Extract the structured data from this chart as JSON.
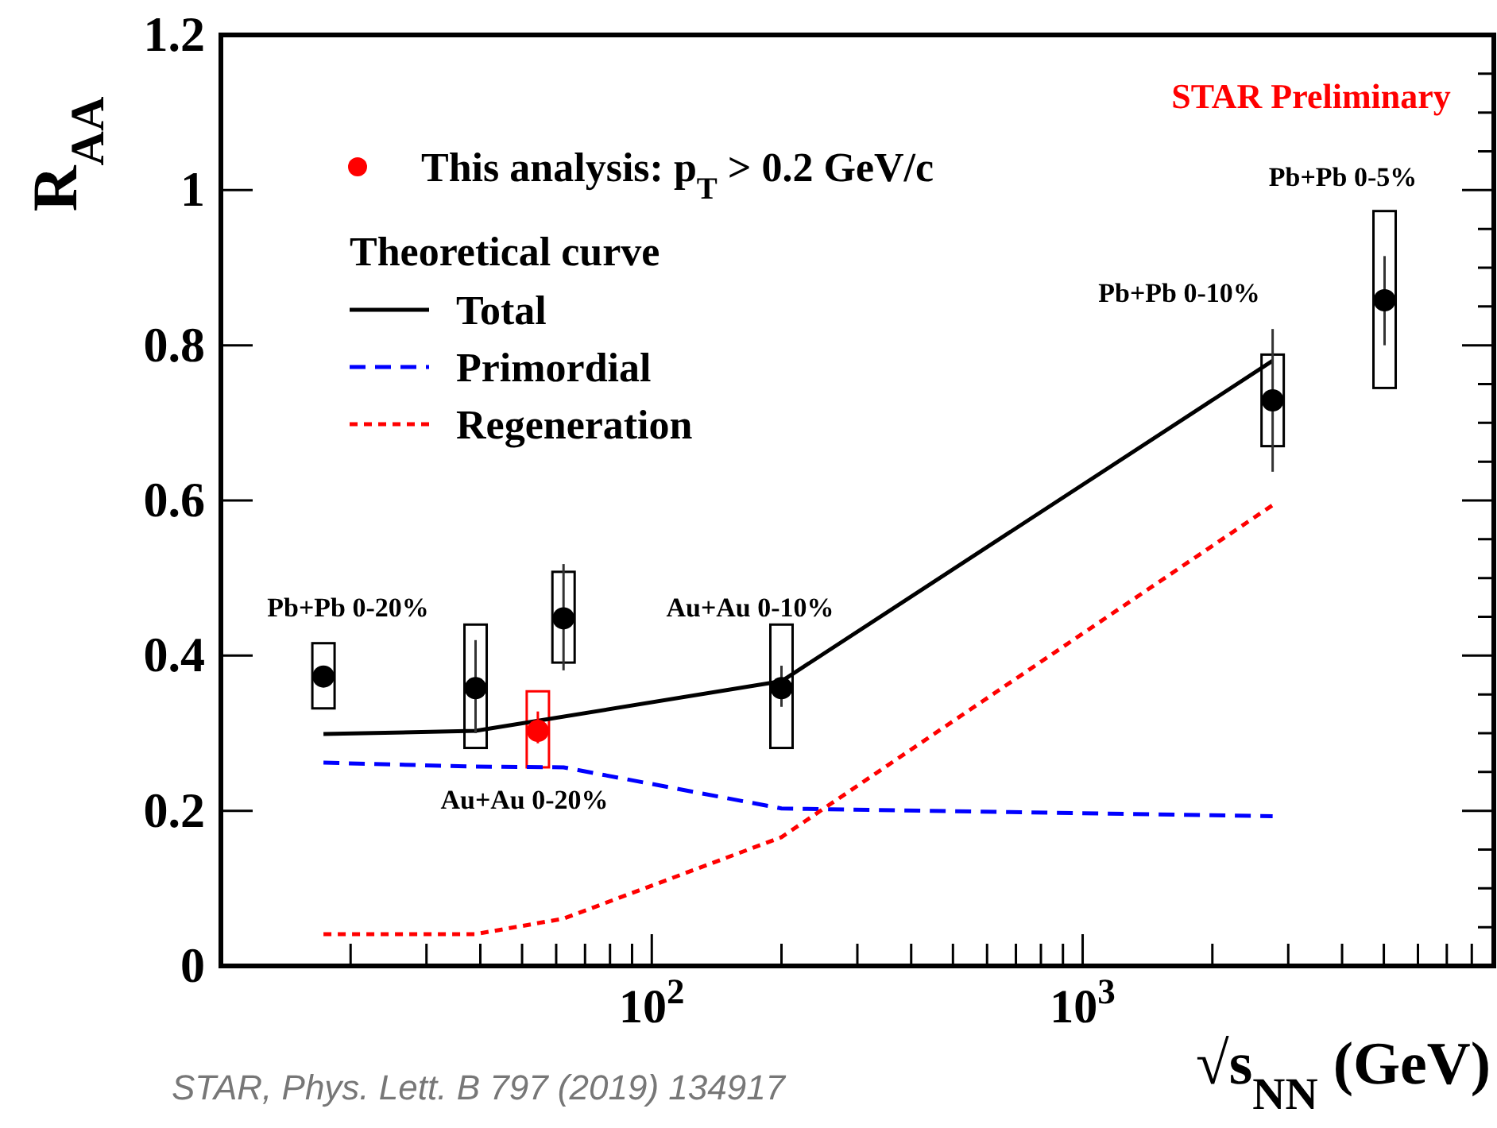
{
  "chart_data": {
    "type": "scatter",
    "xlabel": "√s$_{NN}$ (GeV)",
    "ylabel": "R$_{AA}$",
    "legend_title": "Theoretical curve",
    "legend": "top left",
    "log": "x",
    "grid": false,
    "xlim": [
      10,
      9000
    ],
    "ylim": [
      0,
      1.2
    ],
    "xticks": [
      {
        "value": 20,
        "label": null
      },
      {
        "value": 30,
        "label": null
      },
      {
        "value": 40,
        "label": null
      },
      {
        "value": 50,
        "label": null
      },
      {
        "value": 60,
        "label": null
      },
      {
        "value": 70,
        "label": null
      },
      {
        "value": 80,
        "label": null
      },
      {
        "value": 90,
        "label": null
      },
      {
        "value": 100,
        "label": "10$^{2}$"
      },
      {
        "value": 200,
        "label": null
      },
      {
        "value": 300,
        "label": null
      },
      {
        "value": 400,
        "label": null
      },
      {
        "value": 500,
        "label": null
      },
      {
        "value": 600,
        "label": null
      },
      {
        "value": 700,
        "label": null
      },
      {
        "value": 800,
        "label": null
      },
      {
        "value": 900,
        "label": null
      },
      {
        "value": 1000,
        "label": "10$^{3}$"
      },
      {
        "value": 2000,
        "label": null
      },
      {
        "value": 3000,
        "label": null
      },
      {
        "value": 4000,
        "label": null
      },
      {
        "value": 5000,
        "label": null
      },
      {
        "value": 6000,
        "label": null
      },
      {
        "value": 7000,
        "label": null
      },
      {
        "value": 8000,
        "label": null
      },
      {
        "value": 9000,
        "label": null
      }
    ],
    "yticks": [
      0,
      0.2,
      0.4,
      0.6,
      0.8,
      1,
      1.2
    ],
    "series": [
      {
        "marker": "circle",
        "color": "#000000",
        "x": [
          17.3,
          39,
          62.4,
          200,
          2760,
          5020
        ],
        "values": [
          0.373,
          0.358,
          0.448,
          0.358,
          0.729,
          0.858
        ],
        "errors": [
          null,
          [
            0.3,
            0.42
          ],
          [
            0.381,
            0.518
          ],
          [
            0.334,
            0.387
          ],
          [
            0.637,
            0.821
          ],
          [
            0.8,
            0.915
          ]
        ]
      },
      {
        "type": "bar",
        "color": "#000000",
        "x": [
          17.3,
          39,
          62.4,
          200,
          2760,
          5020
        ],
        "base": [
          0.332,
          0.281,
          0.391,
          0.281,
          0.67,
          0.745
        ],
        "values": [
          0.084,
          0.159,
          0.117,
          0.159,
          0.118,
          0.228
        ]
      },
      {
        "marker": "circle",
        "name": "This analysis: p$_{T}$ > 0.2 GeV/c",
        "color": "#ff0000",
        "x": [
          54.4
        ],
        "values": [
          0.303
        ],
        "errors": [
          [
            0.287,
            0.328
          ]
        ]
      },
      {
        "type": "bar",
        "color": "#ff0000",
        "x": [
          54.4
        ],
        "base": [
          0.256
        ],
        "values": [
          0.098
        ]
      },
      {
        "type": "line",
        "name": "Total",
        "color": "#000000",
        "line_style": "solid",
        "x": [
          17.3,
          39,
          200,
          2760
        ],
        "values": [
          0.299,
          0.303,
          0.367,
          0.78
        ]
      },
      {
        "type": "line",
        "name": "Primordial",
        "color": "#0000ff",
        "line_style": "dashed",
        "x": [
          17.3,
          39,
          62.4,
          200,
          2760
        ],
        "values": [
          0.262,
          0.257,
          0.256,
          0.203,
          0.193
        ]
      },
      {
        "type": "line",
        "name": "Regeneration",
        "color": "#ff0000",
        "line_style": "dotted",
        "x": [
          17.3,
          39,
          62.4,
          200,
          2760
        ],
        "values": [
          0.041,
          0.041,
          0.061,
          0.166,
          0.594
        ]
      }
    ],
    "annotations": [
      "STAR Preliminary",
      "Pb+Pb 0-20%",
      "Au+Au 0-10%",
      "Au+Au 0-20%",
      "Pb+Pb 0-10%",
      "Pb+Pb 0-5%",
      "STAR, Phys. Lett. B 797 (2019) 134917"
    ]
  }
}
